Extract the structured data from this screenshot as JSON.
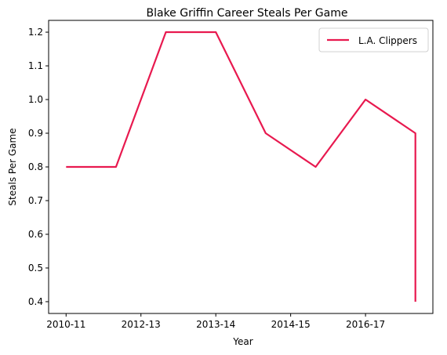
{
  "chart_data": {
    "type": "line",
    "title": "Blake Griffin Career Steals Per Game",
    "xlabel": "Year",
    "ylabel": "Steals Per Game",
    "x_tick_labels": [
      "2010-11",
      "2012-13",
      "2013-14",
      "2014-15",
      "2016-17"
    ],
    "x_tick_positions": [
      0,
      1.5,
      3,
      4.5,
      6
    ],
    "xlim": [
      -0.35,
      7.35
    ],
    "ylim": [
      0.365,
      1.235
    ],
    "yticks": [
      0.4,
      0.5,
      0.6,
      0.7,
      0.8,
      0.9,
      1.0,
      1.1,
      1.2
    ],
    "grid": false,
    "legend_position": "top-right",
    "series": [
      {
        "name": "L.A. Clippers",
        "color": "#e8194f",
        "x": [
          0,
          1,
          2,
          3,
          4,
          5,
          6,
          7,
          7
        ],
        "values": [
          0.8,
          0.8,
          1.2,
          1.2,
          0.9,
          0.8,
          1.0,
          0.9,
          0.4
        ]
      }
    ]
  }
}
